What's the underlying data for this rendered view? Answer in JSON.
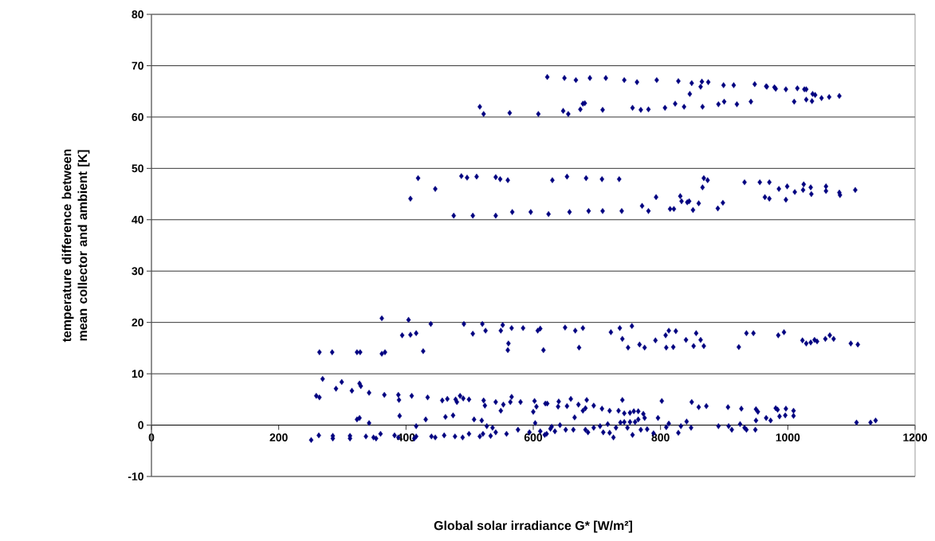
{
  "chart_data": {
    "type": "scatter",
    "xlabel": "Global solar irradiance G* [W/m²]",
    "ylabel": "temperature difference between mean collector and ambient [K]",
    "xlim": [
      0,
      1200
    ],
    "xticks": [
      0,
      200,
      400,
      600,
      800,
      1000,
      1200
    ],
    "ylim": [
      -10,
      80
    ],
    "yticks": [
      -10,
      0,
      10,
      20,
      30,
      40,
      50,
      60,
      70,
      80
    ],
    "grid": "y",
    "marker": "diamond",
    "series": [
      {
        "color": "#000080",
        "x": [
          622,
          649,
          667,
          689,
          714,
          743,
          763,
          794,
          828,
          849,
          865,
          863,
          875,
          899,
          915,
          948,
          966,
          967,
          979,
          981,
          997,
          1015,
          1026,
          1029,
          1039,
          1043,
          1029,
          1038,
          1053,
          1065,
          1081,
          1010,
          846,
          516,
          522,
          563,
          608,
          647,
          655,
          674,
          678,
          681,
          709,
          756,
          769,
          781,
          807,
          823,
          837,
          866,
          891,
          900,
          920,
          942,
          419,
          407,
          446,
          487,
          496,
          511,
          541,
          548,
          560,
          630,
          653,
          683,
          708,
          735,
          868,
          874,
          866,
          932,
          956,
          971,
          986,
          999,
          1011,
          1025,
          1024,
          1036,
          1037,
          1060,
          1060,
          1081,
          1082,
          1106,
          964,
          971,
          997,
          793,
          771,
          781,
          815,
          821,
          831,
          833,
          842,
          845,
          851,
          860,
          890,
          898,
          475,
          505,
          541,
          567,
          596,
          624,
          657,
          687,
          709,
          739,
          362,
          404,
          439,
          394,
          407,
          416,
          264,
          284,
          323,
          328,
          362,
          367,
          427,
          491,
          505,
          520,
          525,
          552,
          549,
          566,
          584,
          561,
          560,
          607,
          611,
          616,
          650,
          666,
          678,
          672,
          722,
          736,
          755,
          740,
          749,
          767,
          775,
          792,
          808,
          813,
          824,
          809,
          820,
          840,
          856,
          863,
          852,
          868,
          923,
          935,
          946,
          985,
          994,
          1023,
          1029,
          1036,
          1042,
          1046,
          1059,
          1066,
          1072,
          1099,
          1110,
          269,
          290,
          299,
          259,
          264,
          315,
          327,
          329,
          342,
          366,
          388,
          389,
          409,
          434,
          457,
          465,
          478,
          480,
          485,
          490,
          499,
          522,
          524,
          541,
          553,
          549,
          566,
          564,
          580,
          602,
          605,
          600,
          603,
          619,
          323,
          327,
          342,
          390,
          416,
          431,
          462,
          474,
          507,
          519,
          527,
          536,
          627,
          251,
          263,
          285,
          285,
          312,
          312,
          337,
          349,
          353,
          360,
          382,
          388,
          416,
          413,
          440,
          446,
          460,
          477,
          489,
          499,
          516,
          521,
          533,
          541,
          558,
          576,
          594,
          611,
          618,
          622,
          640,
          639,
          653,
          659,
          671,
          665,
          684,
          682,
          678,
          695,
          708,
          720,
          734,
          740,
          743,
          752,
          758,
          765,
          773,
          775,
          765,
          743,
          737,
          752,
          760,
          796,
          802,
          849,
          860,
          872,
          906,
          927,
          950,
          953,
          966,
          973,
          981,
          984,
          987,
          997,
          996,
          1009,
          1009,
          1108,
          1130,
          1138,
          950,
          621,
          629,
          634,
          642,
          651,
          663,
          682,
          686,
          695,
          705,
          710,
          717,
          720,
          726,
          730,
          748,
          756,
          769,
          779,
          789,
          809,
          813,
          828,
          832,
          841,
          848,
          891,
          907,
          912,
          925,
          932,
          935,
          949
        ],
        "values": [
          67.8,
          67.6,
          67.2,
          67.6,
          67.6,
          67.2,
          66.8,
          67.2,
          67.0,
          66.6,
          66.9,
          65.9,
          66.8,
          66.2,
          66.2,
          66.4,
          66.0,
          65.9,
          65.8,
          65.5,
          65.4,
          65.6,
          65.4,
          65.4,
          64.5,
          64.3,
          63.4,
          63.1,
          63.7,
          63.9,
          64.1,
          63.0,
          64.5,
          62.0,
          60.6,
          60.8,
          60.6,
          61.2,
          60.6,
          61.5,
          62.6,
          62.7,
          61.4,
          61.8,
          61.4,
          61.5,
          61.8,
          62.6,
          62.0,
          62.0,
          62.5,
          63.0,
          62.5,
          63.0,
          48.1,
          44.1,
          46.0,
          48.5,
          48.2,
          48.4,
          48.3,
          47.9,
          47.7,
          47.7,
          48.4,
          48.1,
          47.9,
          47.9,
          48.1,
          47.7,
          46.3,
          47.3,
          47.3,
          47.3,
          46.0,
          46.5,
          45.4,
          46.9,
          45.8,
          46.3,
          45.0,
          46.5,
          45.6,
          45.3,
          44.8,
          45.8,
          44.4,
          44.1,
          43.9,
          44.4,
          42.7,
          41.7,
          42.1,
          42.1,
          44.6,
          43.6,
          43.4,
          43.6,
          41.9,
          43.2,
          42.2,
          43.3,
          40.8,
          40.8,
          40.8,
          41.5,
          41.5,
          41.1,
          41.5,
          41.7,
          41.7,
          41.7,
          20.8,
          20.5,
          19.7,
          17.5,
          17.6,
          17.9,
          14.2,
          14.2,
          14.2,
          14.2,
          13.9,
          14.2,
          14.4,
          19.7,
          17.8,
          19.7,
          18.4,
          19.5,
          18.4,
          18.9,
          18.9,
          15.9,
          14.6,
          18.4,
          18.8,
          14.6,
          19.0,
          18.4,
          18.9,
          15.1,
          18.1,
          18.9,
          19.3,
          16.8,
          15.1,
          15.7,
          15.1,
          16.5,
          17.5,
          18.4,
          18.3,
          15.1,
          15.2,
          16.6,
          17.9,
          16.6,
          15.4,
          15.4,
          15.2,
          17.9,
          17.9,
          17.5,
          18.1,
          16.5,
          15.9,
          16.1,
          16.6,
          16.3,
          16.8,
          17.5,
          16.8,
          15.9,
          15.7,
          9.0,
          7.1,
          8.4,
          5.7,
          5.4,
          6.7,
          8.1,
          7.6,
          6.3,
          5.9,
          5.9,
          4.9,
          5.7,
          5.4,
          4.8,
          5.1,
          5.0,
          4.5,
          5.7,
          5.2,
          5.0,
          4.8,
          3.8,
          4.5,
          4.0,
          2.8,
          5.5,
          4.5,
          4.5,
          4.7,
          3.6,
          2.6,
          0.4,
          4.2,
          1.1,
          1.4,
          0.4,
          1.8,
          -0.2,
          1.1,
          1.6,
          1.9,
          1.1,
          0.9,
          -0.2,
          -0.5,
          -0.7,
          -2.9,
          -2.0,
          -2.1,
          -2.6,
          -2.1,
          -2.6,
          -2.2,
          -2.4,
          -2.6,
          -1.7,
          -2.0,
          -2.4,
          -2.2,
          -2.6,
          -2.2,
          -2.4,
          -2.0,
          -2.2,
          -2.4,
          -1.7,
          -2.2,
          -1.7,
          -2.1,
          -1.4,
          -1.7,
          -0.9,
          -1.4,
          -1.2,
          -1.9,
          4.2,
          4.6,
          3.6,
          3.7,
          5.1,
          4.0,
          1.5,
          4.9,
          3.3,
          2.8,
          3.8,
          3.2,
          2.8,
          2.8,
          4.9,
          2.3,
          2.4,
          2.7,
          2.7,
          2.2,
          1.4,
          1.1,
          0.6,
          0.5,
          0.6,
          0.6,
          1.4,
          4.7,
          4.5,
          3.5,
          3.7,
          3.5,
          3.2,
          3.1,
          2.6,
          1.4,
          0.9,
          3.3,
          3.0,
          1.7,
          3.2,
          1.9,
          2.8,
          1.8,
          0.5,
          0.5,
          0.9,
          0.9,
          -1.7,
          -0.3,
          -1.2,
          0.0,
          -0.9,
          -0.9,
          -0.9,
          -1.4,
          -0.5,
          -0.2,
          -1.4,
          0.2,
          -1.5,
          -2.4,
          -0.5,
          -0.5,
          -1.9,
          -0.9,
          -0.8,
          -1.6,
          -0.4,
          0.3,
          -1.5,
          -0.2,
          0.7,
          -0.5,
          -0.2,
          -0.2,
          -0.9,
          0.2,
          -0.5,
          -0.9,
          -0.9
        ]
      }
    ]
  }
}
